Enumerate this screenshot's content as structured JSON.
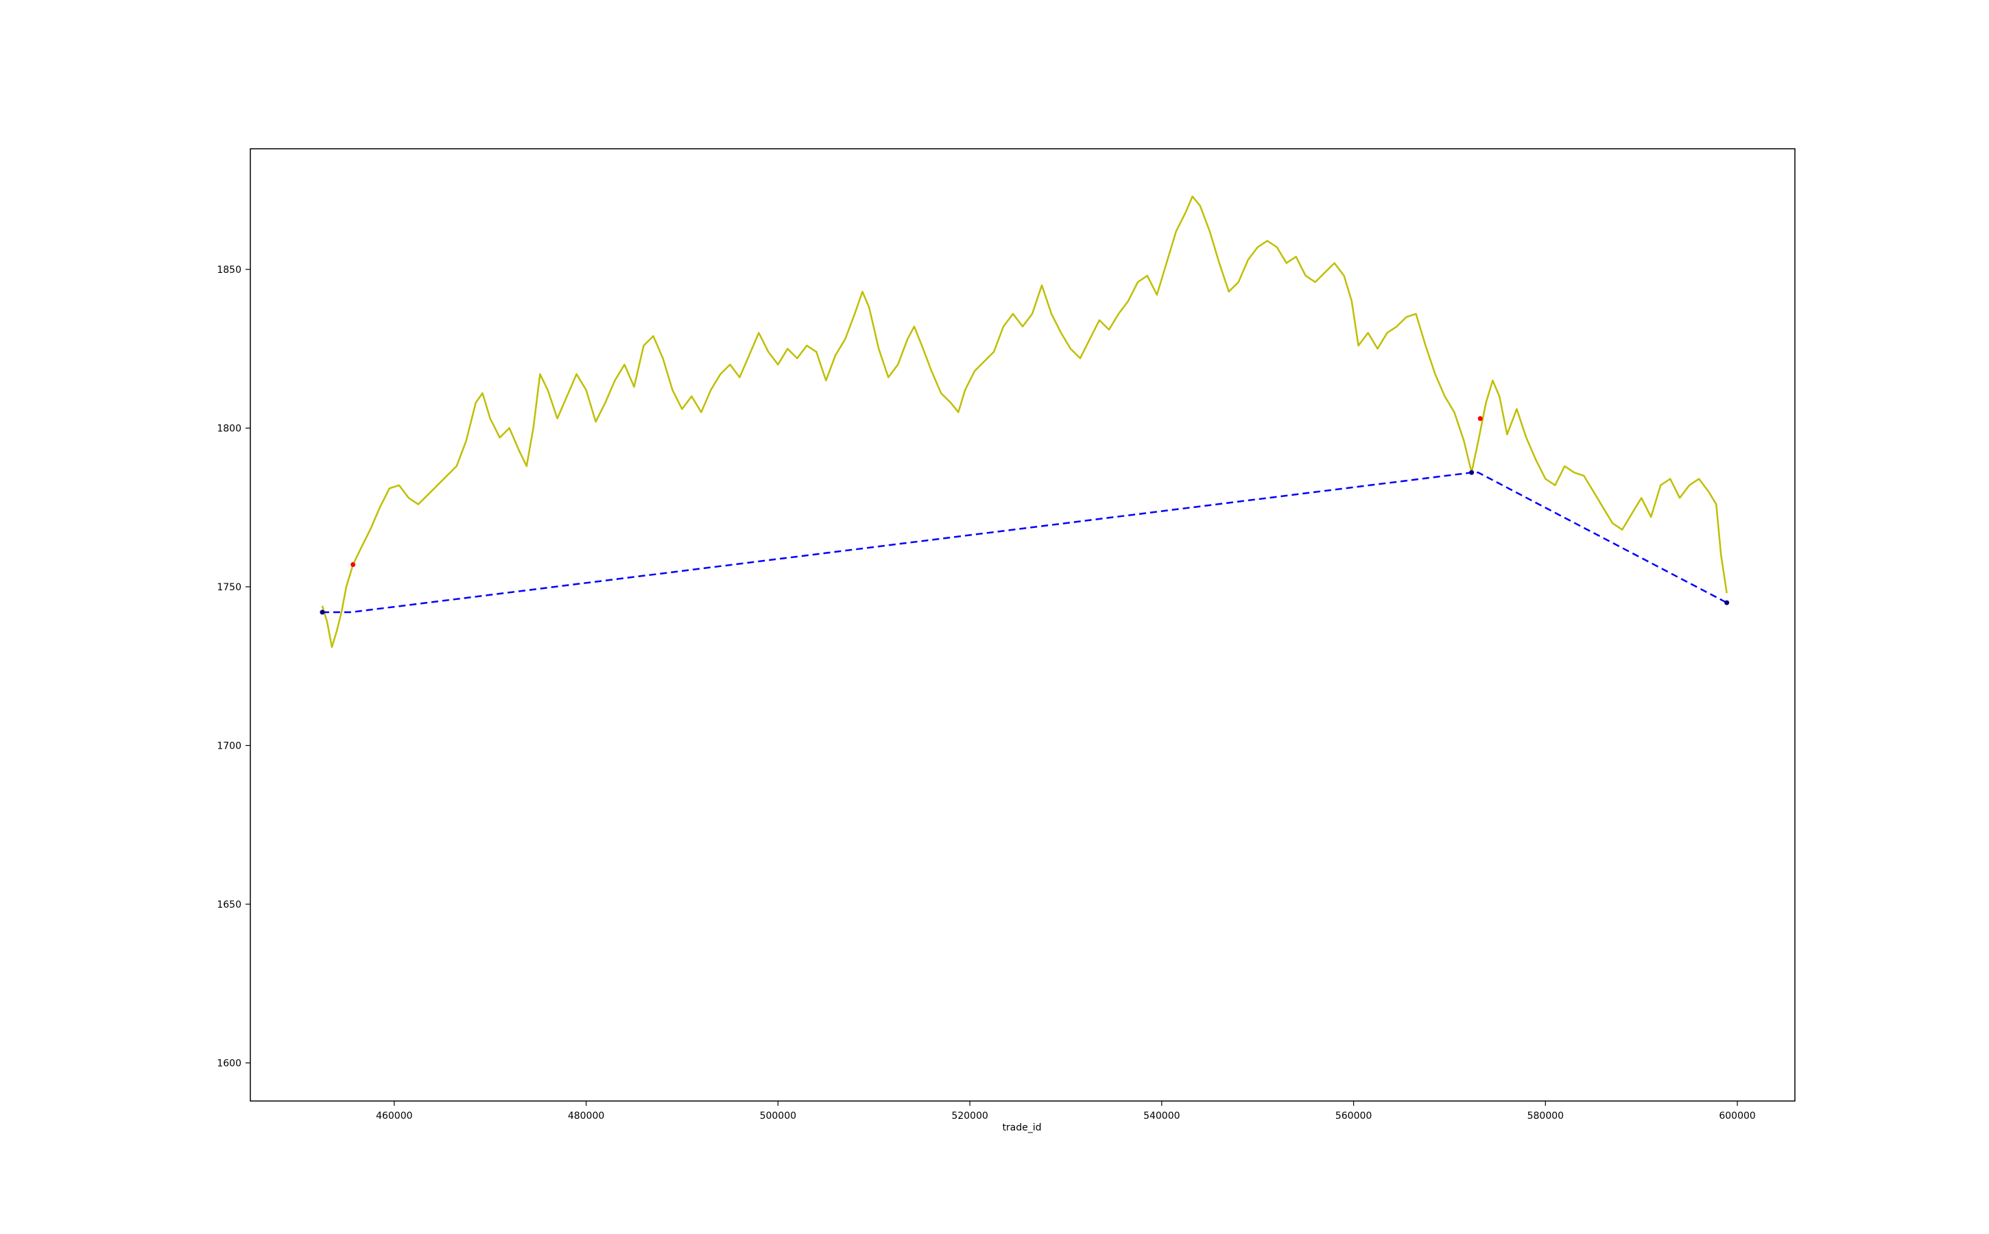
{
  "chart_data": {
    "type": "line",
    "xlabel": "trade_id",
    "ylabel": "",
    "xlim": [
      445000,
      606000
    ],
    "ylim": [
      1588,
      1888
    ],
    "xticks": [
      460000,
      480000,
      500000,
      520000,
      540000,
      560000,
      580000,
      600000
    ],
    "yticks": [
      1600,
      1650,
      1700,
      1750,
      1800,
      1850
    ],
    "grid": false,
    "series": [
      {
        "style": "solid",
        "color": "#bfbf00",
        "points": [
          [
            452500,
            1744
          ],
          [
            453000,
            1739
          ],
          [
            453500,
            1731
          ],
          [
            454000,
            1736
          ],
          [
            454500,
            1742
          ],
          [
            455000,
            1750
          ],
          [
            455700,
            1757
          ],
          [
            456500,
            1762
          ],
          [
            457500,
            1768
          ],
          [
            458500,
            1775
          ],
          [
            459500,
            1781
          ],
          [
            460500,
            1782
          ],
          [
            461500,
            1778
          ],
          [
            462500,
            1776
          ],
          [
            463500,
            1779
          ],
          [
            464500,
            1782
          ],
          [
            465500,
            1785
          ],
          [
            466500,
            1788
          ],
          [
            467500,
            1796
          ],
          [
            468500,
            1808
          ],
          [
            469200,
            1811
          ],
          [
            470000,
            1803
          ],
          [
            471000,
            1797
          ],
          [
            472000,
            1800
          ],
          [
            473000,
            1793
          ],
          [
            473800,
            1788
          ],
          [
            474500,
            1800
          ],
          [
            475200,
            1817
          ],
          [
            476000,
            1812
          ],
          [
            477000,
            1803
          ],
          [
            478000,
            1810
          ],
          [
            479000,
            1817
          ],
          [
            480000,
            1812
          ],
          [
            481000,
            1802
          ],
          [
            482000,
            1808
          ],
          [
            483000,
            1815
          ],
          [
            484000,
            1820
          ],
          [
            485000,
            1813
          ],
          [
            486000,
            1826
          ],
          [
            487000,
            1829
          ],
          [
            488000,
            1822
          ],
          [
            489000,
            1812
          ],
          [
            490000,
            1806
          ],
          [
            491000,
            1810
          ],
          [
            492000,
            1805
          ],
          [
            493000,
            1812
          ],
          [
            494000,
            1817
          ],
          [
            495000,
            1820
          ],
          [
            496000,
            1816
          ],
          [
            497000,
            1823
          ],
          [
            498000,
            1830
          ],
          [
            499000,
            1824
          ],
          [
            500000,
            1820
          ],
          [
            501000,
            1825
          ],
          [
            502000,
            1822
          ],
          [
            503000,
            1826
          ],
          [
            504000,
            1824
          ],
          [
            505000,
            1815
          ],
          [
            506000,
            1823
          ],
          [
            507000,
            1828
          ],
          [
            508000,
            1836
          ],
          [
            508800,
            1843
          ],
          [
            509500,
            1838
          ],
          [
            510500,
            1825
          ],
          [
            511500,
            1816
          ],
          [
            512500,
            1820
          ],
          [
            513500,
            1828
          ],
          [
            514200,
            1832
          ],
          [
            515000,
            1826
          ],
          [
            516000,
            1818
          ],
          [
            517000,
            1811
          ],
          [
            518000,
            1808
          ],
          [
            518800,
            1805
          ],
          [
            519500,
            1812
          ],
          [
            520500,
            1818
          ],
          [
            521500,
            1821
          ],
          [
            522500,
            1824
          ],
          [
            523500,
            1832
          ],
          [
            524500,
            1836
          ],
          [
            525500,
            1832
          ],
          [
            526500,
            1836
          ],
          [
            527500,
            1845
          ],
          [
            528500,
            1836
          ],
          [
            529500,
            1830
          ],
          [
            530500,
            1825
          ],
          [
            531500,
            1822
          ],
          [
            532500,
            1828
          ],
          [
            533500,
            1834
          ],
          [
            534500,
            1831
          ],
          [
            535500,
            1836
          ],
          [
            536500,
            1840
          ],
          [
            537500,
            1846
          ],
          [
            538500,
            1848
          ],
          [
            539500,
            1842
          ],
          [
            540500,
            1852
          ],
          [
            541500,
            1862
          ],
          [
            542500,
            1868
          ],
          [
            543200,
            1873
          ],
          [
            544000,
            1870
          ],
          [
            545000,
            1862
          ],
          [
            546000,
            1852
          ],
          [
            547000,
            1843
          ],
          [
            548000,
            1846
          ],
          [
            549000,
            1853
          ],
          [
            550000,
            1857
          ],
          [
            551000,
            1859
          ],
          [
            552000,
            1857
          ],
          [
            553000,
            1852
          ],
          [
            554000,
            1854
          ],
          [
            555000,
            1848
          ],
          [
            556000,
            1846
          ],
          [
            557000,
            1849
          ],
          [
            558000,
            1852
          ],
          [
            559000,
            1848
          ],
          [
            559800,
            1840
          ],
          [
            560500,
            1826
          ],
          [
            561500,
            1830
          ],
          [
            562500,
            1825
          ],
          [
            563500,
            1830
          ],
          [
            564500,
            1832
          ],
          [
            565500,
            1835
          ],
          [
            566500,
            1836
          ],
          [
            567500,
            1826
          ],
          [
            568500,
            1817
          ],
          [
            569500,
            1810
          ],
          [
            570500,
            1805
          ],
          [
            571500,
            1796
          ],
          [
            572300,
            1786
          ],
          [
            573000,
            1796
          ],
          [
            573800,
            1808
          ],
          [
            574500,
            1815
          ],
          [
            575200,
            1810
          ],
          [
            576000,
            1798
          ],
          [
            577000,
            1806
          ],
          [
            578000,
            1797
          ],
          [
            579000,
            1790
          ],
          [
            580000,
            1784
          ],
          [
            581000,
            1782
          ],
          [
            582000,
            1788
          ],
          [
            583000,
            1786
          ],
          [
            584000,
            1785
          ],
          [
            585000,
            1780
          ],
          [
            586000,
            1775
          ],
          [
            587000,
            1770
          ],
          [
            588000,
            1768
          ],
          [
            589000,
            1773
          ],
          [
            590000,
            1778
          ],
          [
            591000,
            1772
          ],
          [
            592000,
            1782
          ],
          [
            593000,
            1784
          ],
          [
            594000,
            1778
          ],
          [
            595000,
            1782
          ],
          [
            596000,
            1784
          ],
          [
            597000,
            1780
          ],
          [
            597800,
            1776
          ],
          [
            598300,
            1760
          ],
          [
            598900,
            1748
          ]
        ]
      },
      {
        "style": "dashed",
        "color": "#0000ff",
        "points": [
          [
            452500,
            1742
          ],
          [
            455500,
            1742
          ],
          [
            572300,
            1786
          ],
          [
            573000,
            1786
          ],
          [
            598900,
            1745
          ]
        ]
      }
    ],
    "markers": [
      {
        "x": 452500,
        "y": 1742,
        "color": "#000080"
      },
      {
        "x": 572300,
        "y": 1786,
        "color": "#000080"
      },
      {
        "x": 598900,
        "y": 1745,
        "color": "#000080"
      },
      {
        "x": 455700,
        "y": 1757,
        "color": "#ff0000"
      },
      {
        "x": 573200,
        "y": 1803,
        "color": "#ff0000"
      }
    ]
  }
}
